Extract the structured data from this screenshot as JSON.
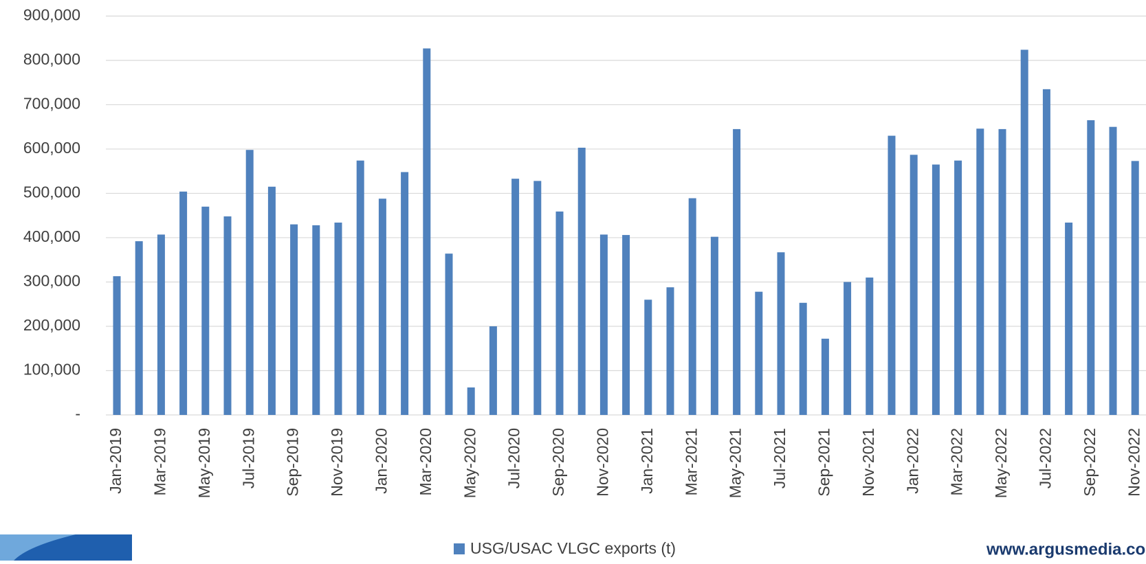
{
  "chart_data": {
    "type": "bar",
    "categories": [
      "Jan-2019",
      null,
      "Mar-2019",
      null,
      "May-2019",
      null,
      "Jul-2019",
      null,
      "Sep-2019",
      null,
      "Nov-2019",
      null,
      "Jan-2020",
      null,
      "Mar-2020",
      null,
      "May-2020",
      null,
      "Jul-2020",
      null,
      "Sep-2020",
      null,
      "Nov-2020",
      null,
      "Jan-2021",
      null,
      "Mar-2021",
      null,
      "May-2021",
      null,
      "Jul-2021",
      null,
      "Sep-2021",
      null,
      "Nov-2021",
      null,
      "Jan-2022",
      null,
      "Mar-2022",
      null,
      "May-2022",
      null,
      "Jul-2022",
      null,
      "Sep-2022",
      null,
      "Nov-2022"
    ],
    "series": [
      {
        "name": "USG/USAC VLGC exports (t)",
        "color": "#4f81bd",
        "values": [
          313000,
          392000,
          407000,
          504000,
          470000,
          448000,
          598000,
          515000,
          430000,
          428000,
          434000,
          574000,
          488000,
          548000,
          827000,
          364000,
          62000,
          200000,
          533000,
          528000,
          459000,
          603000,
          407000,
          406000,
          260000,
          288000,
          489000,
          402000,
          645000,
          278000,
          367000,
          253000,
          172000,
          300000,
          310000,
          630000,
          587000,
          565000,
          574000,
          646000,
          645000,
          824000,
          735000,
          434000,
          665000,
          650000,
          573000
        ]
      }
    ],
    "ylim": [
      0,
      900000
    ],
    "yticks": [
      {
        "value": 0,
        "label": "-"
      },
      {
        "value": 100000,
        "label": "100,000"
      },
      {
        "value": 200000,
        "label": "200,000"
      },
      {
        "value": 300000,
        "label": "300,000"
      },
      {
        "value": 400000,
        "label": "400,000"
      },
      {
        "value": 500000,
        "label": "500,000"
      },
      {
        "value": 600000,
        "label": "600,000"
      },
      {
        "value": 700000,
        "label": "700,000"
      },
      {
        "value": 800000,
        "label": "800,000"
      },
      {
        "value": 900000,
        "label": "900,000"
      }
    ],
    "grid": true,
    "legend": "bottom",
    "source": "www.argusmedia.co"
  }
}
